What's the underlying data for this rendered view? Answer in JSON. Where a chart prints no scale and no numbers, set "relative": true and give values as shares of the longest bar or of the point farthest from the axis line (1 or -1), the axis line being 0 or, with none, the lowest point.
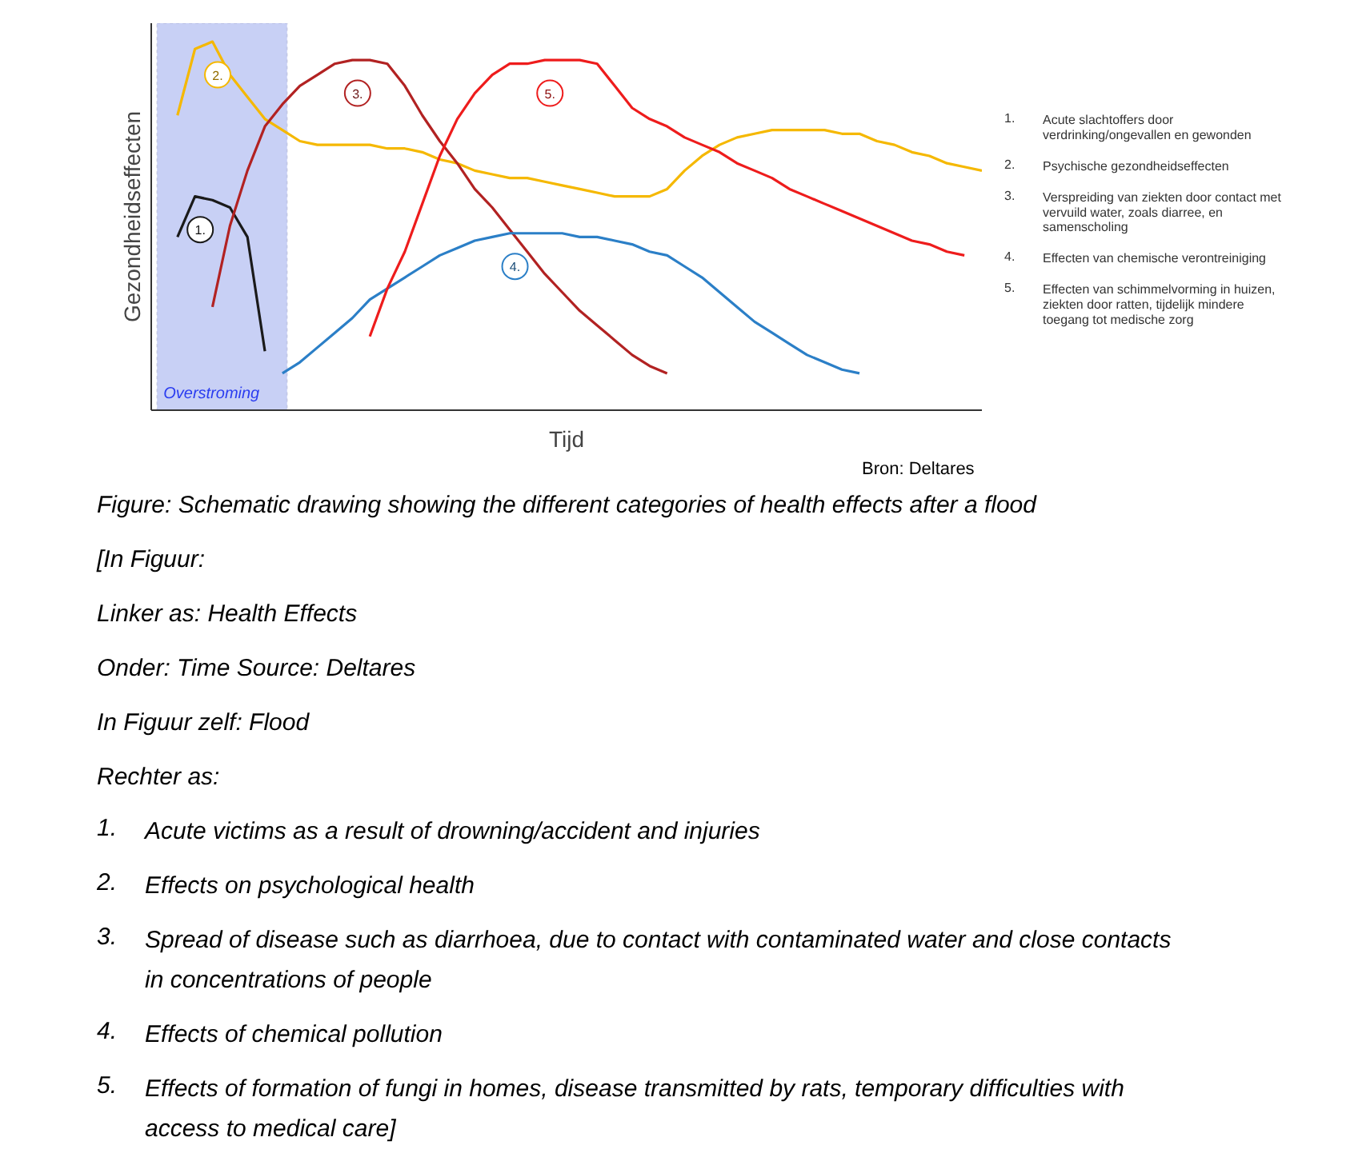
{
  "chart_data": {
    "type": "line",
    "relative": true,
    "xlabel": "Tijd",
    "ylabel": "Gezondheidseffecten",
    "grid": false,
    "categories": [
      null,
      null,
      null,
      null,
      null,
      null,
      null,
      null,
      null,
      null,
      null,
      null,
      null,
      null,
      null,
      null,
      null,
      null,
      null,
      null,
      null,
      null,
      null,
      null,
      null,
      null,
      null,
      null,
      null,
      null,
      null,
      null,
      null,
      null,
      null,
      null,
      null,
      null,
      null,
      null,
      null,
      null,
      null,
      null,
      null,
      null,
      null,
      null
    ],
    "series": [
      {
        "name": "1.",
        "color": "#1a1a1a",
        "values": [
          null,
          0.47,
          0.58,
          0.57,
          0.55,
          0.47,
          0.16,
          null,
          null,
          null,
          null,
          null,
          null,
          null,
          null,
          null,
          null,
          null,
          null,
          null,
          null,
          null,
          null,
          null,
          null,
          null,
          null,
          null,
          null,
          null,
          null,
          null,
          null,
          null,
          null,
          null,
          null,
          null,
          null,
          null,
          null,
          null,
          null,
          null,
          null,
          null,
          null,
          null
        ]
      },
      {
        "name": "2.",
        "color": "#f5b800",
        "values": [
          null,
          0.8,
          0.98,
          1.0,
          0.91,
          0.85,
          0.79,
          0.76,
          0.73,
          0.72,
          0.72,
          0.72,
          0.72,
          0.71,
          0.71,
          0.7,
          0.68,
          0.67,
          0.65,
          0.64,
          0.63,
          0.63,
          0.62,
          0.61,
          0.6,
          0.59,
          0.58,
          0.58,
          0.58,
          0.6,
          0.65,
          0.69,
          0.72,
          0.74,
          0.75,
          0.76,
          0.76,
          0.76,
          0.76,
          0.75,
          0.75,
          0.73,
          0.72,
          0.7,
          0.69,
          0.67,
          0.66,
          0.65
        ]
      },
      {
        "name": "3.",
        "color": "#b22222",
        "values": [
          null,
          null,
          null,
          0.28,
          0.5,
          0.65,
          0.77,
          0.83,
          0.88,
          0.91,
          0.94,
          0.95,
          0.95,
          0.94,
          0.88,
          0.8,
          0.73,
          0.67,
          0.6,
          0.55,
          0.49,
          0.43,
          0.37,
          0.32,
          0.27,
          0.23,
          0.19,
          0.15,
          0.12,
          0.1,
          null,
          null,
          null,
          null,
          null,
          null,
          null,
          null,
          null,
          null,
          null,
          null,
          null,
          null,
          null,
          null,
          null,
          null
        ]
      },
      {
        "name": "4.",
        "color": "#2b7fc7",
        "values": [
          null,
          null,
          null,
          null,
          null,
          null,
          null,
          0.1,
          0.13,
          0.17,
          0.21,
          0.25,
          0.3,
          0.33,
          0.36,
          0.39,
          0.42,
          0.44,
          0.46,
          0.47,
          0.48,
          0.48,
          0.48,
          0.48,
          0.47,
          0.47,
          0.46,
          0.45,
          0.43,
          0.42,
          0.39,
          0.36,
          0.32,
          0.28,
          0.24,
          0.21,
          0.18,
          0.15,
          0.13,
          0.11,
          0.1,
          null,
          null,
          null,
          null,
          null,
          null,
          null
        ]
      },
      {
        "name": "5.",
        "color": "#ee1c1c",
        "values": [
          null,
          null,
          null,
          null,
          null,
          null,
          null,
          null,
          null,
          null,
          null,
          null,
          0.2,
          0.33,
          0.43,
          0.56,
          0.69,
          0.79,
          0.86,
          0.91,
          0.94,
          0.94,
          0.95,
          0.95,
          0.95,
          0.94,
          0.88,
          0.82,
          0.79,
          0.77,
          0.74,
          0.72,
          0.7,
          0.67,
          0.65,
          0.63,
          0.6,
          0.58,
          0.56,
          0.54,
          0.52,
          0.5,
          0.48,
          0.46,
          0.45,
          0.43,
          0.42,
          null
        ]
      }
    ],
    "annotations": [
      "1. Acute slachtoffers door verdrinking/ongevallen en gewonden",
      "2. Psychische gezondheidseffecten",
      "3. Verspreiding van ziekten door contact met vervuild water, zoals diarree, en samenscholing",
      "4. Effecten van chemische verontreiniging",
      "5. Effecten van schimmelvorming in huizen, ziekten door ratten, tijdelijk mindere toegang tot medische zorg",
      "Overstroming",
      "Bron: Deltares",
      "Figure: Schematic drawing showing the different categories of health effects after a flood",
      "[In Figuur:",
      "Linker as: Health Effects",
      "Onder: Time    Source: Deltares",
      "In Figuur zelf: Flood",
      "Rechter as:",
      "1. Acute victims as a result of drowning/accident and injuries",
      "2. Effects on psychological health",
      "3. Spread of disease such as diarrhoea, due to contact with  contaminated water and close contacts in concentrations of people",
      "4. Effects of chemical pollution",
      "5. Effects of formation of fungi in homes, disease transmitted by rats, temporary difficulties with access to medical care]"
    ]
  }
}
